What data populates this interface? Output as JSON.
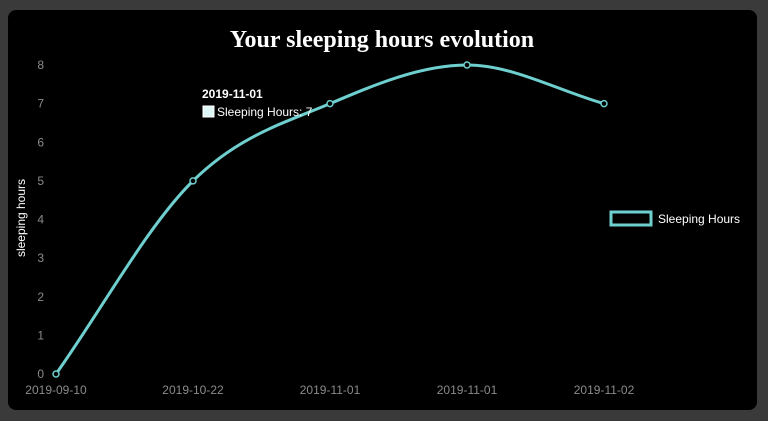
{
  "chart_data": {
    "type": "line",
    "title": "Your sleeping hours evolution",
    "xlabel": "",
    "ylabel": "sleeping hours",
    "categories": [
      "2019-09-10",
      "2019-10-22",
      "2019-11-01",
      "2019-11-01",
      "2019-11-02"
    ],
    "series": [
      {
        "name": "Sleeping Hours",
        "values": [
          0,
          5,
          7,
          8,
          7
        ]
      }
    ],
    "ylim": [
      0,
      8
    ],
    "yticks": [
      "0",
      "1",
      "2",
      "3",
      "4",
      "5",
      "6",
      "7",
      "8"
    ],
    "grid": false,
    "legend_position": "right",
    "colors": {
      "line": "#6fcfcf",
      "background": "#000000",
      "frame": "#3a3a3a"
    },
    "tooltip": {
      "title": "2019-11-01",
      "label": "Sleeping Hours: 7"
    }
  }
}
